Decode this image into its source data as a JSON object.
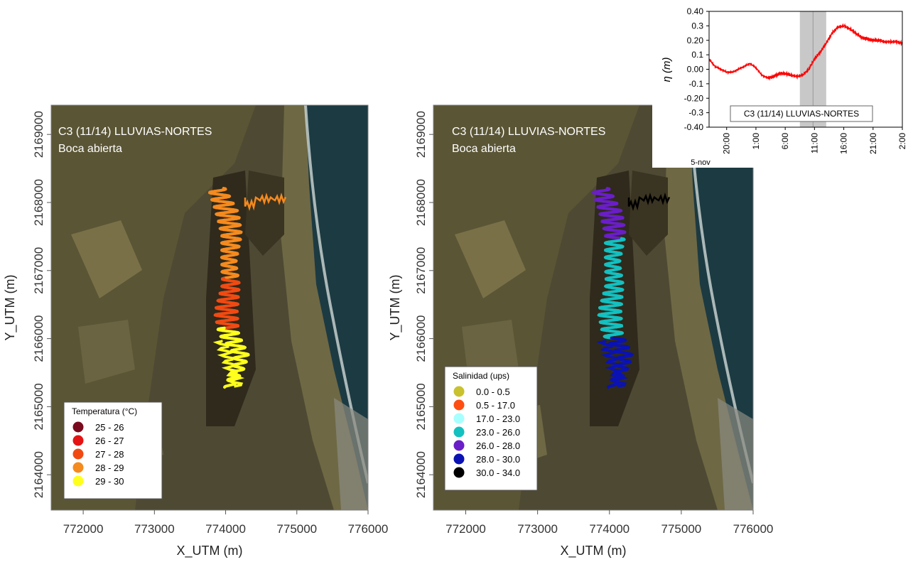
{
  "maps": [
    {
      "title_line1": "C3 (11/14) LLUVIAS-NORTES",
      "title_line2": "Boca abierta",
      "xlabel": "X_UTM (m)",
      "ylabel": "Y_UTM (m)",
      "x_ticks": [
        "772000",
        "773000",
        "774000",
        "775000",
        "776000"
      ],
      "y_ticks": [
        "2164000",
        "2165000",
        "2166000",
        "2167000",
        "2168000",
        "2169000"
      ],
      "legend_title": "Temperatura (°C)",
      "legend": [
        {
          "label": "25 - 26",
          "color": "#7a0a1e"
        },
        {
          "label": "26 - 27",
          "color": "#e51414"
        },
        {
          "label": "27 - 28",
          "color": "#f04a12"
        },
        {
          "label": "28 - 29",
          "color": "#f58a1e"
        },
        {
          "label": "29 - 30",
          "color": "#ffff1e"
        }
      ]
    },
    {
      "title_line1": "C3 (11/14) LLUVIAS-NORTES",
      "title_line2": "Boca abierta",
      "xlabel": "X_UTM (m)",
      "ylabel": "Y_UTM (m)",
      "x_ticks": [
        "772000",
        "773000",
        "774000",
        "775000",
        "776000"
      ],
      "y_ticks": [
        "2164000",
        "2165000",
        "2166000",
        "2167000",
        "2168000",
        "2169000"
      ],
      "legend_title": "Salinidad (ups)",
      "legend": [
        {
          "label": "0.0 - 0.5",
          "color": "#c9c12e"
        },
        {
          "label": "0.5 - 17.0",
          "color": "#ff4e12"
        },
        {
          "label": "17.0 - 23.0",
          "color": "#a8ffff"
        },
        {
          "label": "23.0 - 26.0",
          "color": "#14c0c0"
        },
        {
          "label": "26.0 - 28.0",
          "color": "#6a1ec8"
        },
        {
          "label": "28.0 - 30.0",
          "color": "#0a12b4"
        },
        {
          "label": "30.0 - 34.0",
          "color": "#000000"
        }
      ]
    }
  ],
  "chart_data": {
    "type": "line",
    "ylabel": "η (m)",
    "ylim": [
      -0.4,
      0.4
    ],
    "y_ticks": [
      "0.40",
      "0.3",
      "0.20",
      "0.1",
      "0.00",
      "-0.1",
      "-0.20",
      "-0.3",
      "-0.40"
    ],
    "x_ticks": [
      "20:00",
      "1:00",
      "6:00",
      "11:00",
      "16:00",
      "21:00",
      "2:00"
    ],
    "date_label": "5-nov",
    "annotation": "C3 (11/14) LLUVIAS-NORTES",
    "shaded_span": [
      "8:30",
      "13:00"
    ],
    "series": [
      {
        "color": "#ff0000",
        "x": [
          "17:00",
          "18:00",
          "19:00",
          "20:00",
          "21:00",
          "22:00",
          "23:00",
          "0:00",
          "1:00",
          "2:00",
          "3:00",
          "4:00",
          "5:00",
          "6:00",
          "7:00",
          "8:00",
          "9:00",
          "10:00",
          "11:00",
          "12:00",
          "13:00",
          "14:00",
          "15:00",
          "16:00",
          "17:00",
          "18:00",
          "19:00",
          "20:00",
          "21:00",
          "22:00",
          "23:00",
          "0:00",
          "1:00",
          "2:00"
        ],
        "y": [
          0.07,
          0.02,
          0.0,
          -0.02,
          -0.02,
          0.0,
          0.02,
          0.04,
          0.01,
          -0.04,
          -0.06,
          -0.05,
          -0.03,
          -0.03,
          -0.04,
          -0.05,
          -0.04,
          0.0,
          0.07,
          0.12,
          0.18,
          0.25,
          0.29,
          0.3,
          0.28,
          0.25,
          0.22,
          0.21,
          0.2,
          0.2,
          0.19,
          0.19,
          0.19,
          0.18
        ]
      }
    ]
  }
}
